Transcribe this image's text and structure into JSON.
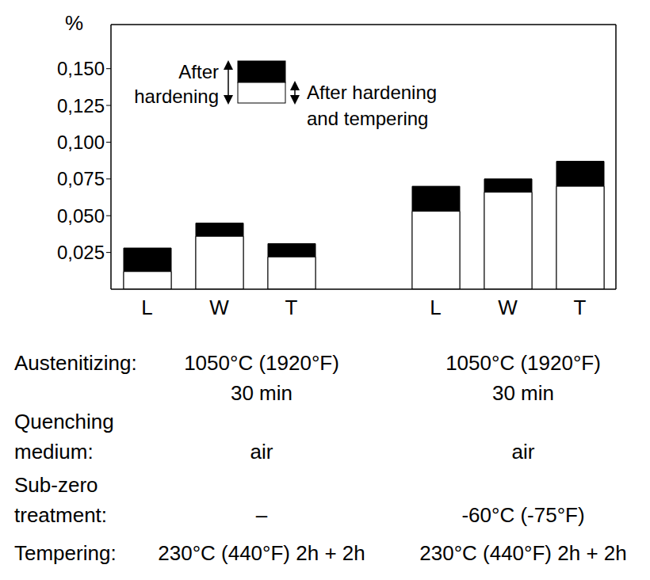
{
  "chart_data": {
    "type": "bar",
    "ylabel": "%",
    "categories": [
      "L",
      "W",
      "T",
      null,
      "L",
      "W",
      "T"
    ],
    "series": [
      {
        "name": "After hardening",
        "color": "#000000",
        "values": [
          0.028,
          0.045,
          0.031,
          null,
          0.07,
          0.075,
          0.087
        ]
      },
      {
        "name": "After hardening and tempering",
        "color": "#ffffff",
        "values": [
          0.012,
          0.036,
          0.022,
          null,
          0.053,
          0.066,
          0.07
        ]
      }
    ],
    "ylim": [
      0,
      0.18
    ],
    "yticks": [
      {
        "value": 0.025,
        "label": "0,025"
      },
      {
        "value": 0.05,
        "label": "0,050"
      },
      {
        "value": 0.075,
        "label": "0,075"
      },
      {
        "value": 0.1,
        "label": "0,100"
      },
      {
        "value": 0.125,
        "label": "0,125"
      },
      {
        "value": 0.15,
        "label": "0,150"
      }
    ],
    "grid": false,
    "annotations": [
      {
        "label": [
          "Austenitizing:"
        ],
        "values": [
          [
            "1050°C (1920°F)",
            "30 min"
          ],
          [
            "1050°C (1920°F)",
            "30 min"
          ]
        ]
      },
      {
        "label": [
          "Quenching",
          "medium:"
        ],
        "values": [
          [
            "air"
          ],
          [
            "air"
          ]
        ]
      },
      {
        "label": [
          "Sub-zero",
          "treatment:"
        ],
        "values": [
          [
            "–"
          ],
          [
            "-60°C (-75°F)"
          ]
        ]
      },
      {
        "label": [
          "Tempering:"
        ],
        "values": [
          [
            "230°C (440°F) 2h + 2h"
          ],
          [
            "230°C (440°F) 2h + 2h"
          ]
        ]
      }
    ]
  }
}
